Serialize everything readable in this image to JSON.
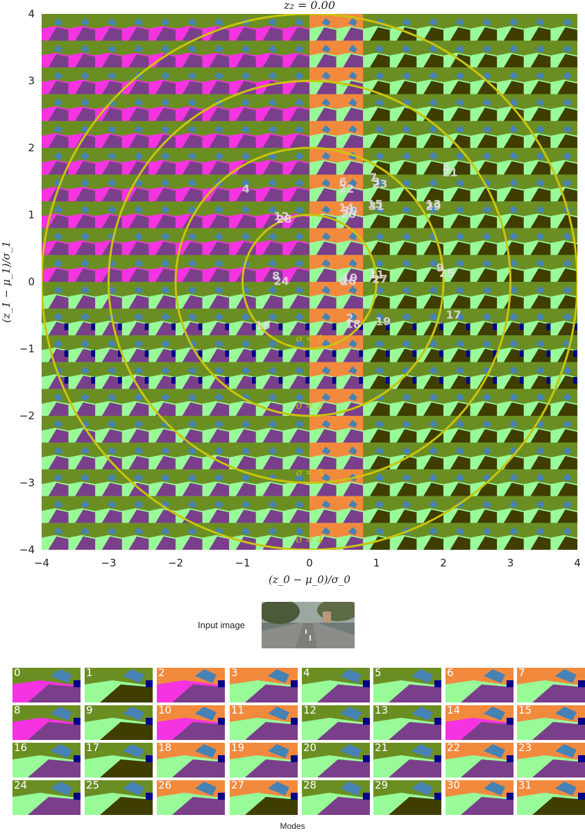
{
  "chart_data": {
    "type": "scatter",
    "title": "z_2 = 0.00",
    "xlabel": "(z_0 − μ_0)/σ_0",
    "ylabel": "(z_1 − μ_1)/σ_1",
    "xlim": [
      -4,
      4
    ],
    "ylim": [
      -4,
      4
    ],
    "xticks": [
      "−4",
      "−3",
      "−2",
      "−1",
      "0",
      "1",
      "2",
      "3",
      "4"
    ],
    "yticks": [
      "−4",
      "−3",
      "−2",
      "−1",
      "0",
      "1",
      "2",
      "3",
      "4"
    ],
    "grid": "20x20 decoded segmentation thumbnails",
    "region_colors": [
      {
        "x_from": -4.0,
        "x_to": -0.2,
        "class": "purple-road",
        "color": "#7a3f8a"
      },
      {
        "x_from": -0.2,
        "x_to": 0.6,
        "class": "orange",
        "color": "#f28a3e"
      },
      {
        "x_from": 0.6,
        "x_to": 4.0,
        "class": "dark-olive",
        "color": "#3f3d00"
      }
    ],
    "circles": [
      {
        "label": "σ = 1",
        "radius": 1
      },
      {
        "label": "σ = 2",
        "radius": 2
      },
      {
        "label": "σ = 3",
        "radius": 3
      },
      {
        "label": "σ = 4",
        "radius": 4
      }
    ],
    "circle_color": "#c9c40c",
    "mode_points": [
      {
        "label": "0",
        "x": 0.5,
        "y": 0.0
      },
      {
        "label": "1",
        "x": 0.95,
        "y": 0.1
      },
      {
        "label": "2",
        "x": 0.6,
        "y": -0.55
      },
      {
        "label": "3",
        "x": 1.0,
        "y": 1.48
      },
      {
        "label": "4",
        "x": -0.95,
        "y": 1.38
      },
      {
        "label": "5",
        "x": 2.05,
        "y": 1.7
      },
      {
        "label": "6",
        "x": 0.5,
        "y": 1.48
      },
      {
        "label": "7",
        "x": 0.95,
        "y": 1.55
      },
      {
        "label": "8",
        "x": -0.5,
        "y": 0.08
      },
      {
        "label": "9",
        "x": 1.95,
        "y": 0.2
      },
      {
        "label": "10",
        "x": 0.6,
        "y": 0.05
      },
      {
        "label": "11",
        "x": 1.0,
        "y": 0.1
      },
      {
        "label": "12",
        "x": -0.42,
        "y": 0.97
      },
      {
        "label": "13",
        "x": 1.85,
        "y": 1.15
      },
      {
        "label": "14",
        "x": 0.55,
        "y": 1.1
      },
      {
        "label": "15",
        "x": 0.98,
        "y": 1.15
      },
      {
        "label": "16",
        "x": -0.7,
        "y": -0.66
      },
      {
        "label": "17",
        "x": 2.15,
        "y": -0.5
      },
      {
        "label": "18",
        "x": 0.65,
        "y": -0.64
      },
      {
        "label": "19",
        "x": 1.1,
        "y": -0.6
      },
      {
        "label": "20",
        "x": 0.58,
        "y": 1.0
      },
      {
        "label": "21",
        "x": 2.1,
        "y": 1.62
      },
      {
        "label": "22",
        "x": 0.55,
        "y": 1.38
      },
      {
        "label": "23",
        "x": 1.05,
        "y": 1.45
      },
      {
        "label": "24",
        "x": -0.42,
        "y": 0.0
      },
      {
        "label": "25",
        "x": 2.05,
        "y": 0.12
      },
      {
        "label": "26",
        "x": 0.58,
        "y": 0.0
      },
      {
        "label": "27",
        "x": 1.05,
        "y": 0.03
      },
      {
        "label": "28",
        "x": -0.38,
        "y": 0.93
      },
      {
        "label": "29",
        "x": 1.85,
        "y": 1.12
      },
      {
        "label": "30",
        "x": 0.6,
        "y": 1.05
      },
      {
        "label": "31",
        "x": 1.0,
        "y": 1.12
      }
    ]
  },
  "input_section": {
    "label": "Input image"
  },
  "modes_section": {
    "label": "Modes",
    "modes": [
      {
        "id": "0",
        "top": "#6b8e23",
        "road": "#7a3f8a",
        "side": "#f533e0"
      },
      {
        "id": "1",
        "top": "#6b8e23",
        "road": "#3f3d00",
        "side": "#98fb98"
      },
      {
        "id": "2",
        "top": "#f28a3e",
        "road": "#7a3f8a",
        "side": "#f533e0"
      },
      {
        "id": "3",
        "top": "#f28a3e",
        "road": "#7a3f8a",
        "side": "#98fb98"
      },
      {
        "id": "4",
        "top": "#6b8e23",
        "road": "#7a3f8a",
        "side": "#98fb98"
      },
      {
        "id": "5",
        "top": "#6b8e23",
        "road": "#7a3f8a",
        "side": "#98fb98"
      },
      {
        "id": "6",
        "top": "#f28a3e",
        "road": "#7a3f8a",
        "side": "#98fb98"
      },
      {
        "id": "7",
        "top": "#f28a3e",
        "road": "#7a3f8a",
        "side": "#98fb98"
      },
      {
        "id": "8",
        "top": "#6b8e23",
        "road": "#7a3f8a",
        "side": "#f533e0"
      },
      {
        "id": "9",
        "top": "#6b8e23",
        "road": "#3f3d00",
        "side": "#98fb98"
      },
      {
        "id": "10",
        "top": "#f28a3e",
        "road": "#7a3f8a",
        "side": "#f533e0"
      },
      {
        "id": "11",
        "top": "#f28a3e",
        "road": "#7a3f8a",
        "side": "#98fb98"
      },
      {
        "id": "12",
        "top": "#6b8e23",
        "road": "#7a3f8a",
        "side": "#98fb98"
      },
      {
        "id": "13",
        "top": "#6b8e23",
        "road": "#7a3f8a",
        "side": "#98fb98"
      },
      {
        "id": "14",
        "top": "#f28a3e",
        "road": "#7a3f8a",
        "side": "#f533e0"
      },
      {
        "id": "15",
        "top": "#f28a3e",
        "road": "#7a3f8a",
        "side": "#98fb98"
      },
      {
        "id": "16",
        "top": "#6b8e23",
        "road": "#7a3f8a",
        "side": "#98fb98"
      },
      {
        "id": "17",
        "top": "#6b8e23",
        "road": "#3f3d00",
        "side": "#98fb98"
      },
      {
        "id": "18",
        "top": "#f28a3e",
        "road": "#7a3f8a",
        "side": "#98fb98"
      },
      {
        "id": "19",
        "top": "#f28a3e",
        "road": "#7a3f8a",
        "side": "#98fb98"
      },
      {
        "id": "20",
        "top": "#6b8e23",
        "road": "#7a3f8a",
        "side": "#98fb98"
      },
      {
        "id": "21",
        "top": "#6b8e23",
        "road": "#7a3f8a",
        "side": "#98fb98"
      },
      {
        "id": "22",
        "top": "#f28a3e",
        "road": "#7a3f8a",
        "side": "#98fb98"
      },
      {
        "id": "23",
        "top": "#f28a3e",
        "road": "#7a3f8a",
        "side": "#98fb98"
      },
      {
        "id": "24",
        "top": "#6b8e23",
        "road": "#7a3f8a",
        "side": "#98fb98"
      },
      {
        "id": "25",
        "top": "#6b8e23",
        "road": "#3f3d00",
        "side": "#98fb98"
      },
      {
        "id": "26",
        "top": "#f28a3e",
        "road": "#7a3f8a",
        "side": "#98fb98"
      },
      {
        "id": "27",
        "top": "#f28a3e",
        "road": "#3f3d00",
        "side": "#98fb98"
      },
      {
        "id": "28",
        "top": "#6b8e23",
        "road": "#7a3f8a",
        "side": "#98fb98"
      },
      {
        "id": "29",
        "top": "#6b8e23",
        "road": "#3f3d00",
        "side": "#98fb98"
      },
      {
        "id": "30",
        "top": "#f28a3e",
        "road": "#7a3f8a",
        "side": "#98fb98"
      },
      {
        "id": "31",
        "top": "#f28a3e",
        "road": "#3f3d00",
        "side": "#98fb98"
      }
    ]
  }
}
